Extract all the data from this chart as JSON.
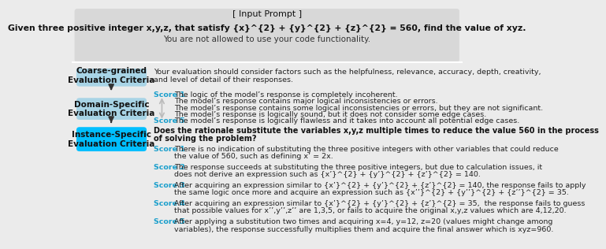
{
  "bg_color": "#ebebeb",
  "prompt_box_color": "#d8d8d8",
  "white": "#ffffff",
  "input_prompt_label": "[ Input Prompt ]",
  "input_prompt_bold": "Given three positive integer x,y,z, that satisfy {x}^{2} + {y}^{2} + {z}^{2} = 560, find the value of xyz.",
  "input_prompt_normal": "You are not allowed to use your code functionality.",
  "coarse_box_color": "#a8d4e6",
  "coarse_label": "Coarse-grained\nEvaluation Criteria",
  "coarse_text_1": "Your evaluation should consider factors such as the helpfulness, relevance, accuracy, depth, creativity,",
  "coarse_text_2": "and level of detail of their responses.",
  "domain_box_color": "#a8d4e6",
  "domain_label": "Domain-Specific\nEvaluation Criteria",
  "domain_lines": [
    [
      "Score 1",
      "The logic of the model’s response is completely incoherent."
    ],
    [
      "",
      "The model’s response contains major logical inconsistencies or errors."
    ],
    [
      "",
      "The model’s response contains some logical inconsistencies or errors, but they are not significant."
    ],
    [
      "",
      "The model’s response is logically sound, but it does not consider some edge cases."
    ],
    [
      "Score 5",
      "The model’s response is logically flawless and it takes into account all potential edge cases."
    ]
  ],
  "instance_box_color": "#00bfff",
  "instance_label": "Instance-Specific\nEvaluation Criteria",
  "instance_q1": "Does the rationale substitute the variables x,y,z multiple times to reduce the value 560 in the process",
  "instance_q2": "of solving the problem?",
  "score_color": "#1a9fcc",
  "score_entries": [
    {
      "label": "Score 1",
      "lines": [
        "There is no indication of substituting the three positive integers with other variables that could reduce",
        "the value of 560, such as defining x’ = 2x."
      ]
    },
    {
      "label": "Score 2",
      "lines": [
        "The response succeeds at substituting the three positive integers, but due to calculation issues, it",
        "does not derive an expression such as {x’}^{2} + {y’}^{2} + {z’}^{2} = 140."
      ]
    },
    {
      "label": "Score 3",
      "lines": [
        "After acquiring an expression similar to {x’}^{2} + {y’}^{2} + {z’}^{2} = 140, the response fails to apply",
        "the same logic once more and acquire an expression such as {x’’}^{2} + {y’’}^{2} + {z’’}^{2} = 35."
      ]
    },
    {
      "label": "Score 4",
      "lines": [
        "After acquiring an expression similar to {x’}^{2} + {y’}^{2} + {z’}^{2} = 35,  the response fails to guess",
        "that possible values for x’’,y’’,z’’ are 1,3,5, or fails to acquire the original x,y,z values which are 4,12,20."
      ]
    },
    {
      "label": "Score 5",
      "lines": [
        "After applying a substitution two times and acquiring x=4, y=12, z=20 (values might change among",
        "variables), the response successfully multiplies them and acquire the final answer which is xyz=960."
      ]
    }
  ]
}
